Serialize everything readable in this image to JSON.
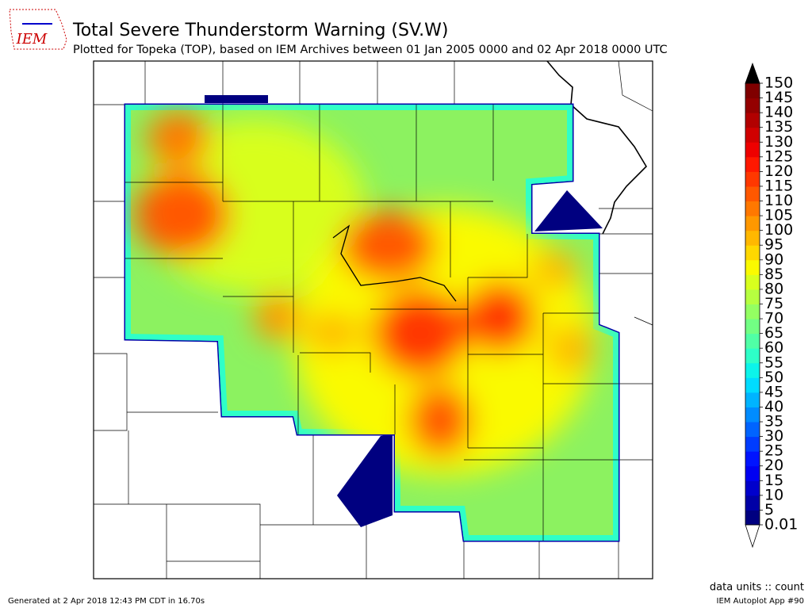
{
  "title": "Total Severe Thunderstorm Warning (SV.W)",
  "subtitle": "Plotted for Topeka (TOP), based on IEM Archives  between 01 Jan 2005 0000 and 02 Apr 2018 0000 UTC",
  "logo": "IEM",
  "colorbar": {
    "ticks": [
      0.01,
      5,
      10,
      15,
      20,
      25,
      30,
      35,
      40,
      45,
      50,
      55,
      60,
      65,
      70,
      75,
      80,
      85,
      90,
      95,
      100,
      105,
      110,
      115,
      120,
      125,
      130,
      135,
      140,
      145,
      150
    ],
    "colors": [
      "#000080",
      "#0000a6",
      "#0000cc",
      "#0000f2",
      "#0014ff",
      "#003cff",
      "#0064ff",
      "#008cff",
      "#00b4ff",
      "#00dcff",
      "#0cf4ea",
      "#2effc8",
      "#50ffa6",
      "#72ff84",
      "#94ff62",
      "#b6ff40",
      "#d8ff1e",
      "#fafa00",
      "#ffd800",
      "#ffb800",
      "#ff9800",
      "#ff7800",
      "#ff5800",
      "#ff3800",
      "#ff1800",
      "#ee0000",
      "#d00000",
      "#b20000",
      "#940000",
      "#800000"
    ],
    "over_color": "#000000",
    "under_color": "#ffffff"
  },
  "units_label": "data units :: count",
  "footer_left": "Generated at 2 Apr 2018 12:43 PM CDT in 16.70s",
  "footer_right": "IEM Autoplot App #90"
}
